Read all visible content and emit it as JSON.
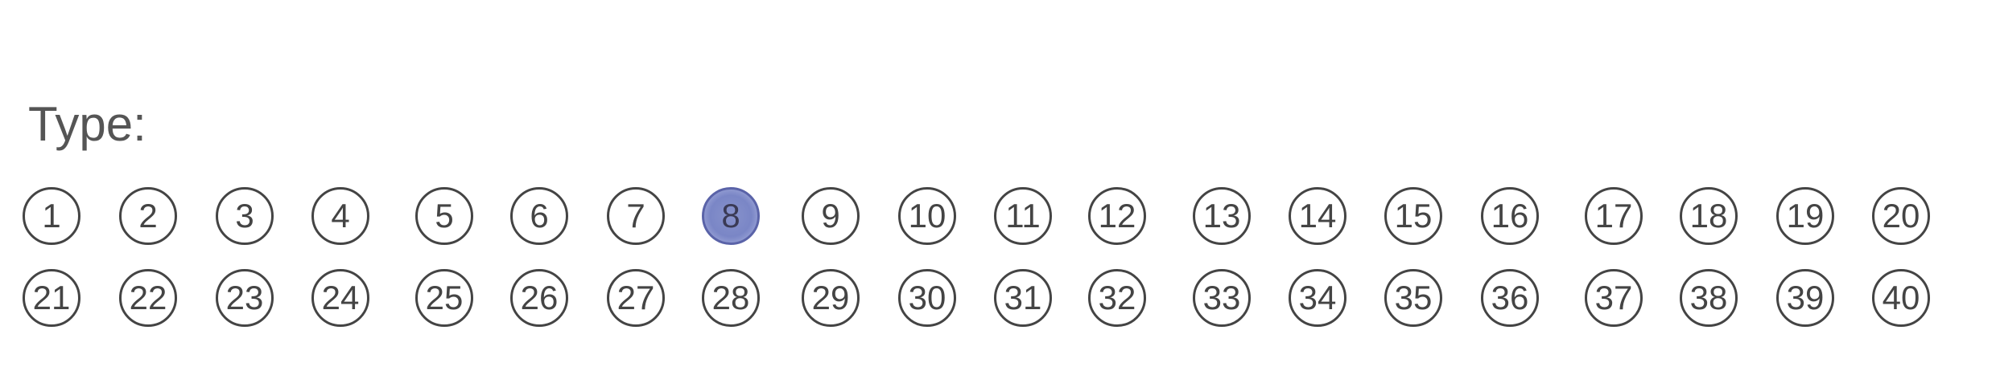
{
  "form": {
    "type_label": "Type:",
    "selected": 8,
    "rows": [
      [
        {
          "label": "1"
        },
        {
          "label": "2"
        },
        {
          "label": "3"
        },
        {
          "label": "4"
        },
        {
          "label": "5"
        },
        {
          "label": "6"
        },
        {
          "label": "7"
        },
        {
          "label": "8"
        },
        {
          "label": "9"
        },
        {
          "label": "10"
        },
        {
          "label": "11"
        },
        {
          "label": "12"
        },
        {
          "label": "13"
        },
        {
          "label": "14"
        },
        {
          "label": "15"
        },
        {
          "label": "16"
        },
        {
          "label": "17"
        },
        {
          "label": "18"
        },
        {
          "label": "19"
        },
        {
          "label": "20"
        }
      ],
      [
        {
          "label": "21"
        },
        {
          "label": "22"
        },
        {
          "label": "23"
        },
        {
          "label": "24"
        },
        {
          "label": "25"
        },
        {
          "label": "26"
        },
        {
          "label": "27"
        },
        {
          "label": "28"
        },
        {
          "label": "29"
        },
        {
          "label": "30"
        },
        {
          "label": "31"
        },
        {
          "label": "32"
        },
        {
          "label": "33"
        },
        {
          "label": "34"
        },
        {
          "label": "35"
        },
        {
          "label": "36"
        },
        {
          "label": "37"
        },
        {
          "label": "38"
        },
        {
          "label": "39"
        },
        {
          "label": "40"
        }
      ]
    ]
  },
  "colors": {
    "ink": "#444444",
    "fill": "#7a86c6"
  }
}
